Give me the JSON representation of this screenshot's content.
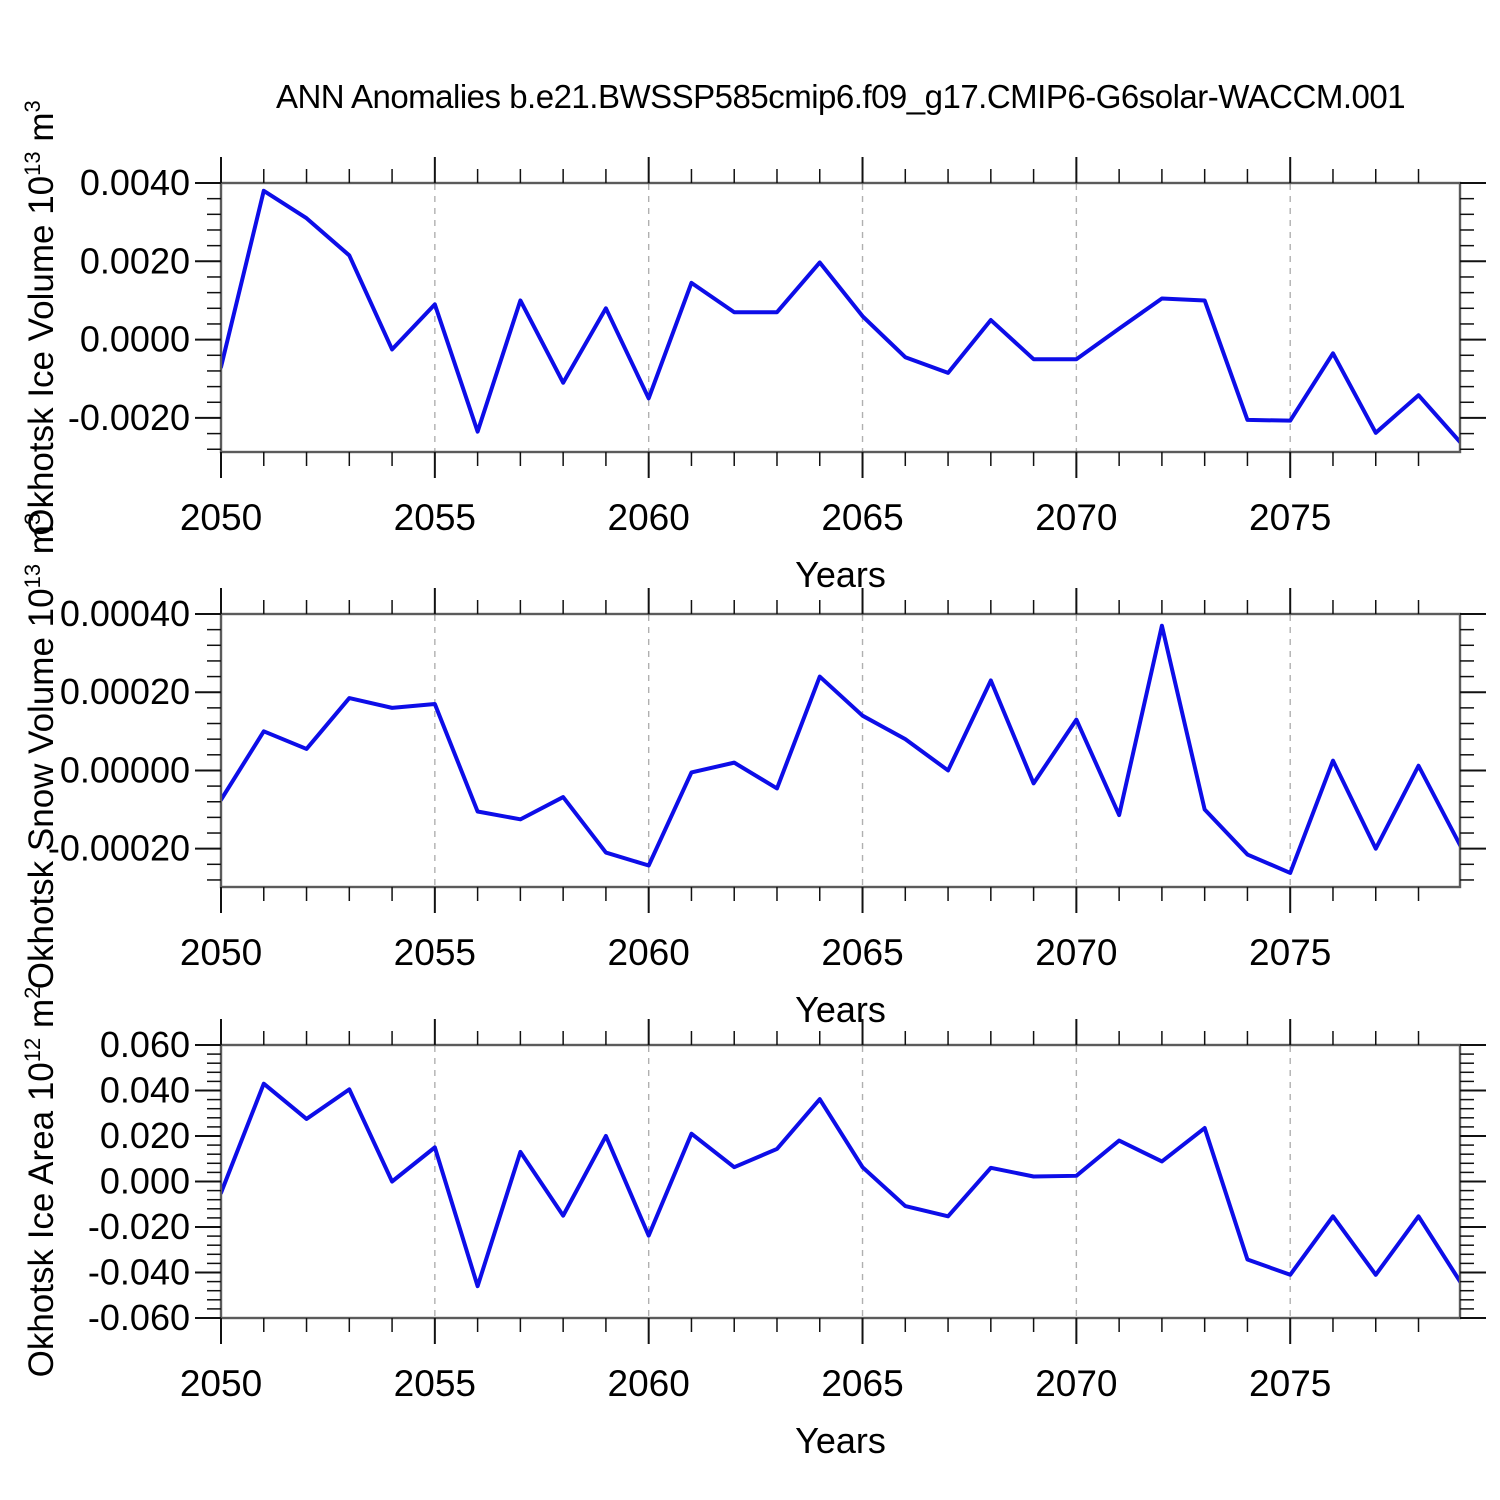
{
  "page": {
    "title": "ANN Anomalies b.e21.BWSSP585cmip6.f09_g17.CMIP6-G6solar-WACCM.001",
    "background": "#ffffff"
  },
  "style": {
    "line_color": "#0d0de8",
    "frame_color": "#5b5b5b",
    "tick_color": "#111111",
    "grid_color": "#b0b0b0",
    "text_color": "#000000"
  },
  "xaxis": {
    "label": "Years",
    "xlim": [
      2050,
      2078.97
    ],
    "major_ticks": [
      2050,
      2055,
      2060,
      2065,
      2070,
      2075
    ],
    "major_tick_labels": [
      "2050",
      "2055",
      "2060",
      "2065",
      "2070",
      "2075"
    ],
    "minor_step": 1,
    "grid_years": [
      2055,
      2060,
      2065,
      2070,
      2075
    ]
  },
  "chart_data": [
    {
      "type": "line",
      "name": "okhotsk-ice-volume",
      "ylabel": "Okhotsk Ice Volume 10^13 m^3",
      "ylabel_parts": {
        "text": "Okhotsk Ice Volume 10",
        "sup1": "13",
        "mid": " m",
        "sup2": "3"
      },
      "x": [
        2050,
        2051,
        2052,
        2053,
        2054,
        2055,
        2056,
        2057,
        2058,
        2059,
        2060,
        2061,
        2062,
        2063,
        2064,
        2065,
        2066,
        2067,
        2068,
        2069,
        2070,
        2071,
        2072,
        2073,
        2074,
        2075,
        2076,
        2077,
        2078,
        2079
      ],
      "values": [
        -0.0007,
        0.0038,
        0.0031,
        0.00215,
        -0.00025,
        0.0009,
        -0.00235,
        0.001,
        -0.0011,
        0.0008,
        -0.0015,
        0.00145,
        0.0007,
        0.0007,
        0.00197,
        0.0006,
        -0.00045,
        -0.00085,
        0.0005,
        -0.0005,
        -0.0005,
        0.00028,
        0.00105,
        0.001,
        -0.00205,
        -0.00207,
        -0.00035,
        -0.00238,
        -0.00142,
        -0.00265
      ],
      "ylim": [
        -0.00287,
        0.004
      ],
      "yticks": [
        {
          "v": 0.004,
          "label": "0.0040"
        },
        {
          "v": 0.002,
          "label": "0.0020"
        },
        {
          "v": 0.0,
          "label": "0.0000"
        },
        {
          "v": -0.002,
          "label": "-0.0020"
        }
      ],
      "y_minor_step": 0.0004
    },
    {
      "type": "line",
      "name": "okhotsk-snow-volume",
      "ylabel": "Okhotsk Snow Volume 10^13 m^3",
      "ylabel_parts": {
        "text": "Okhotsk Snow Volume 10",
        "sup1": "13",
        "mid": " m",
        "sup2": "3"
      },
      "x": [
        2050,
        2051,
        2052,
        2053,
        2054,
        2055,
        2056,
        2057,
        2058,
        2059,
        2060,
        2061,
        2062,
        2063,
        2064,
        2065,
        2066,
        2067,
        2068,
        2069,
        2070,
        2071,
        2072,
        2073,
        2074,
        2075,
        2076,
        2077,
        2078,
        2079
      ],
      "values": [
        -7.5e-05,
        0.0001,
        5.5e-05,
        0.000185,
        0.00016,
        0.00017,
        -0.000105,
        -0.000125,
        -6.8e-05,
        -0.00021,
        -0.000243,
        -5e-06,
        2e-05,
        -4.6e-05,
        0.00024,
        0.00014,
        8e-05,
        0.0,
        0.00023,
        -3.3e-05,
        0.00013,
        -0.000114,
        0.00037,
        -0.0001,
        -0.000215,
        -0.000262,
        2.5e-05,
        -0.0002,
        1.2e-05,
        -0.000197
      ],
      "ylim": [
        -0.000298,
        0.0004
      ],
      "yticks": [
        {
          "v": 0.0004,
          "label": "0.00040"
        },
        {
          "v": 0.0002,
          "label": "0.00020"
        },
        {
          "v": 0.0,
          "label": "0.00000"
        },
        {
          "v": -0.0002,
          "label": "-0.00020"
        }
      ],
      "y_minor_step": 4e-05
    },
    {
      "type": "line",
      "name": "okhotsk-ice-area",
      "ylabel": "Okhotsk Ice Area 10^12 m^2",
      "ylabel_parts": {
        "text": "Okhotsk Ice Area 10",
        "sup1": "12",
        "mid": " m",
        "sup2": "2"
      },
      "x": [
        2050,
        2051,
        2052,
        2053,
        2054,
        2055,
        2056,
        2057,
        2058,
        2059,
        2060,
        2061,
        2062,
        2063,
        2064,
        2065,
        2066,
        2067,
        2068,
        2069,
        2070,
        2071,
        2072,
        2073,
        2074,
        2075,
        2076,
        2077,
        2078,
        2079
      ],
      "values": [
        -0.005,
        0.043,
        0.0275,
        0.0405,
        0.0,
        0.015,
        -0.046,
        0.013,
        -0.015,
        0.02,
        -0.0238,
        0.021,
        0.0063,
        0.0143,
        0.0362,
        0.0063,
        -0.0108,
        -0.0153,
        0.006,
        0.0022,
        0.0025,
        0.018,
        0.0088,
        0.0235,
        -0.0343,
        -0.041,
        -0.0153,
        -0.041,
        -0.0153,
        -0.0448
      ],
      "ylim": [
        -0.06,
        0.06
      ],
      "yticks": [
        {
          "v": 0.06,
          "label": "0.060"
        },
        {
          "v": 0.04,
          "label": "0.040"
        },
        {
          "v": 0.02,
          "label": "0.020"
        },
        {
          "v": 0.0,
          "label": "0.000"
        },
        {
          "v": -0.02,
          "label": "-0.020"
        },
        {
          "v": -0.04,
          "label": "-0.040"
        },
        {
          "v": -0.06,
          "label": "-0.060"
        }
      ],
      "y_minor_step": 0.004
    }
  ]
}
